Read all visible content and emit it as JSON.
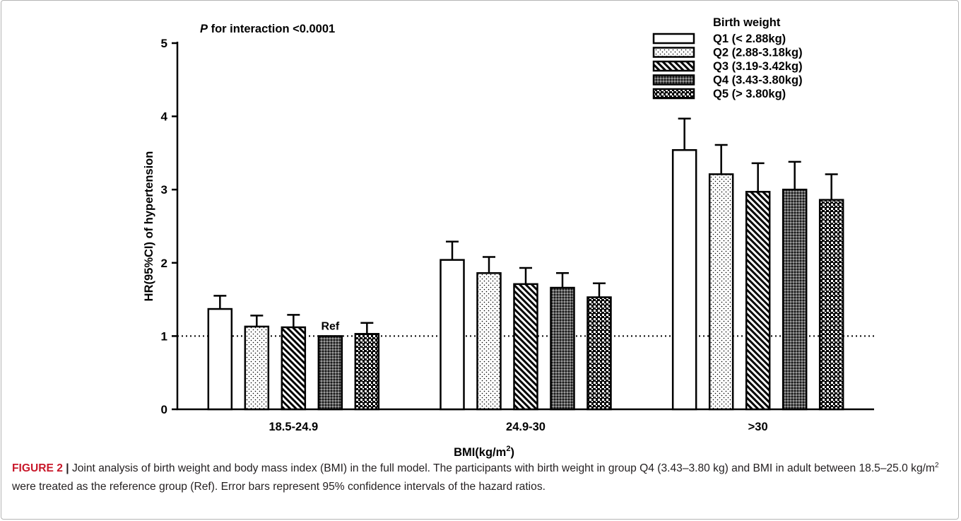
{
  "chart_data": {
    "type": "bar",
    "categories": [
      "18.5-24.9",
      "24.9-30",
      ">30"
    ],
    "series": [
      {
        "name": "Q1 (< 2.88kg)",
        "pattern": "open",
        "values": [
          1.37,
          2.04,
          3.54
        ],
        "ci_upper": [
          1.55,
          2.29,
          3.97
        ]
      },
      {
        "name": "Q2 (2.88-3.18kg)",
        "pattern": "dots",
        "values": [
          1.13,
          1.86,
          3.21
        ],
        "ci_upper": [
          1.28,
          2.08,
          3.61
        ]
      },
      {
        "name": "Q3 (3.19-3.42kg)",
        "pattern": "diagonal",
        "values": [
          1.12,
          1.71,
          2.97
        ],
        "ci_upper": [
          1.29,
          1.93,
          3.36
        ]
      },
      {
        "name": "Q4 (3.43-3.80kg)",
        "pattern": "dense-dots",
        "values": [
          1.0,
          1.66,
          3.0
        ],
        "ci_upper": [
          1.0,
          1.86,
          3.38
        ]
      },
      {
        "name": "Q5 (> 3.80kg)",
        "pattern": "checker",
        "values": [
          1.03,
          1.53,
          2.86
        ],
        "ci_upper": [
          1.18,
          1.72,
          3.21
        ]
      }
    ],
    "ylim": [
      0,
      5
    ],
    "yticks": [
      0,
      1,
      2,
      3,
      4,
      5
    ],
    "ylabel": "HR(95%CI) of hypertension",
    "xlabel": "BMI(kg/m",
    "xlabel_sup": "2",
    "xlabel_suffix": ")",
    "annotation": "P for interaction <0.0001",
    "annotation_italic": "P",
    "annotation_rest": " for interaction <0.0001",
    "ref_label": "Ref",
    "reference_line": 1,
    "legend_title": "Birth weight",
    "legend_position": "top-right",
    "grid": false
  },
  "caption": {
    "label": "FIGURE 2",
    "separator": " | ",
    "text1": "Joint analysis of birth weight and body mass index (BMI) in the full model. The participants with birth weight in group Q4 (3.43–3.80 kg) and BMI in adult between 18.5–25.0 kg/m",
    "sup": "2",
    "text2": " were treated as the reference group (Ref). Error bars represent 95% confidence intervals of the hazard ratios."
  }
}
